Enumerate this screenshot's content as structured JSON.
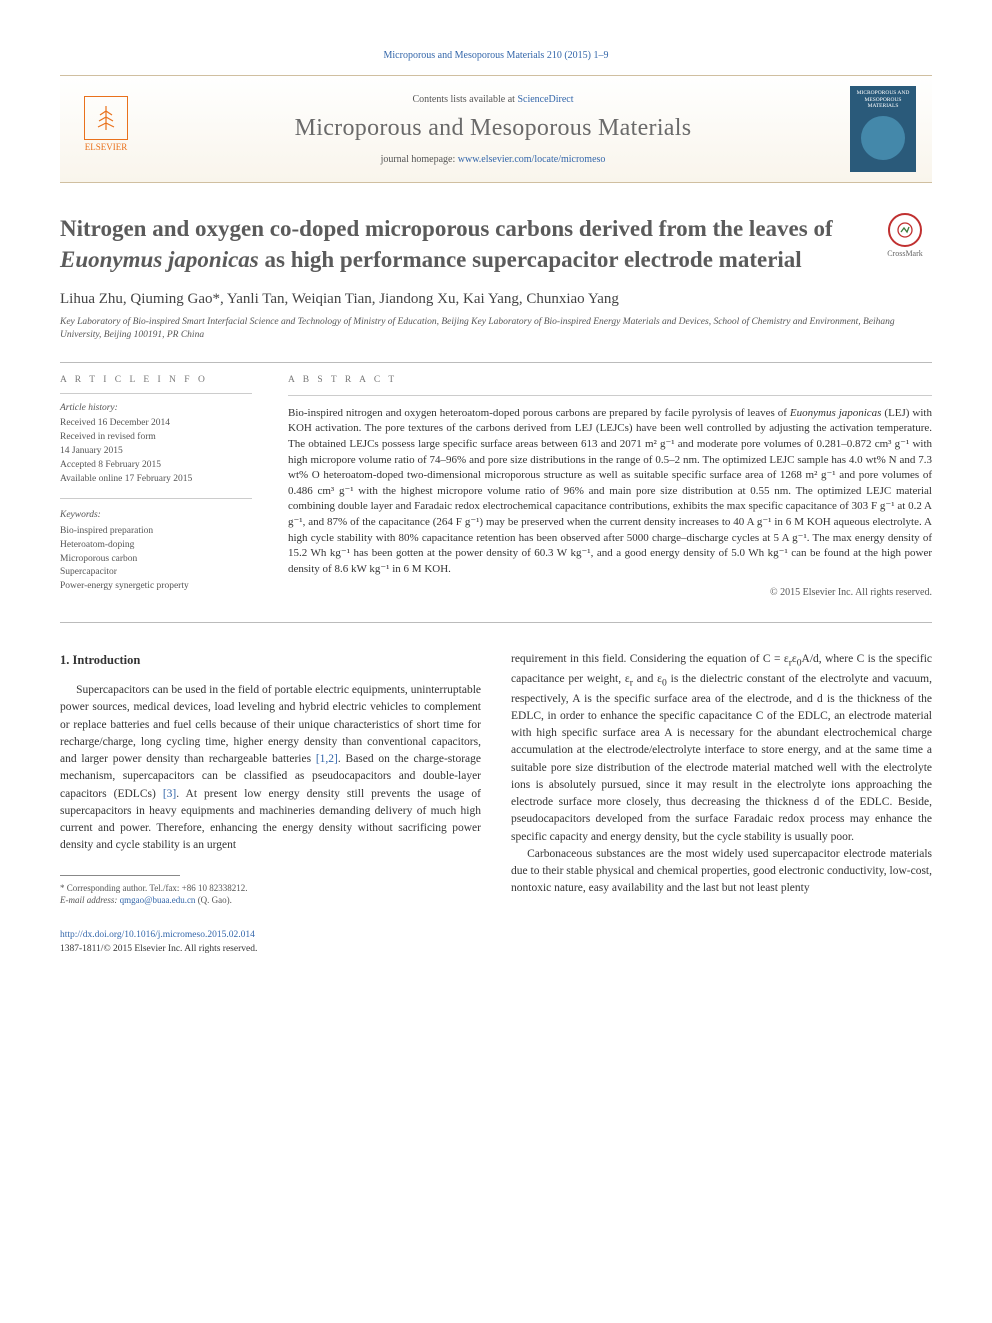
{
  "citation": "Microporous and Mesoporous Materials 210 (2015) 1–9",
  "header": {
    "publisher_name": "ELSEVIER",
    "contents_prefix": "Contents lists available at ",
    "contents_link": "ScienceDirect",
    "journal_name": "Microporous and Mesoporous Materials",
    "homepage_prefix": "journal homepage: ",
    "homepage_url": "www.elsevier.com/locate/micromeso",
    "cover_title": "MICROPOROUS AND MESOPOROUS MATERIALS"
  },
  "crossmark_label": "CrossMark",
  "title_html": "Nitrogen and oxygen co-doped microporous carbons derived from the leaves of <em>Euonymus japonicas</em> as high performance supercapacitor electrode material",
  "authors": "Lihua Zhu, Qiuming Gao*, Yanli Tan, Weiqian Tian, Jiandong Xu, Kai Yang, Chunxiao Yang",
  "affiliation": "Key Laboratory of Bio-inspired Smart Interfacial Science and Technology of Ministry of Education, Beijing Key Laboratory of Bio-inspired Energy Materials and Devices, School of Chemistry and Environment, Beihang University, Beijing 100191, PR China",
  "info": {
    "heading": "A R T I C L E   I N F O",
    "history_label": "Article history:",
    "history": "Received 16 December 2014\nReceived in revised form\n14 January 2015\nAccepted 8 February 2015\nAvailable online 17 February 2015",
    "keywords_label": "Keywords:",
    "keywords": "Bio-inspired preparation\nHeteroatom-doping\nMicroporous carbon\nSupercapacitor\nPower-energy synergetic property"
  },
  "abstract": {
    "heading": "A B S T R A C T",
    "text_html": "Bio-inspired nitrogen and oxygen heteroatom-doped porous carbons are prepared by facile pyrolysis of leaves of <em>Euonymus japonicas</em> (LEJ) with KOH activation. The pore textures of the carbons derived from LEJ (LEJCs) have been well controlled by adjusting the activation temperature. The obtained LEJCs possess large specific surface areas between 613 and 2071 m² g⁻¹ and moderate pore volumes of 0.281–0.872 cm³ g⁻¹ with high micropore volume ratio of 74–96% and pore size distributions in the range of 0.5–2 nm. The optimized LEJC sample has 4.0 wt% N and 7.3 wt% O heteroatom-doped two-dimensional microporous structure as well as suitable specific surface area of 1268 m² g⁻¹ and pore volumes of 0.486 cm³ g⁻¹ with the highest micropore volume ratio of 96% and main pore size distribution at 0.55 nm. The optimized LEJC material combining double layer and Faradaic redox electrochemical capacitance contributions, exhibits the max specific capacitance of 303 F g⁻¹ at 0.2 A g⁻¹, and 87% of the capacitance (264 F g⁻¹) may be preserved when the current density increases to 40 A g⁻¹ in 6 M KOH aqueous electrolyte. A high cycle stability with 80% capacitance retention has been observed after 5000 charge–discharge cycles at 5 A g⁻¹. The max energy density of 15.2 Wh kg⁻¹ has been gotten at the power density of 60.3 W kg⁻¹, and a good energy density of 5.0 Wh kg⁻¹ can be found at the high power density of 8.6 kW kg⁻¹ in 6 M KOH.",
    "copyright": "© 2015 Elsevier Inc. All rights reserved."
  },
  "body": {
    "intro_heading": "1. Introduction",
    "col1_para_html": "Supercapacitors can be used in the field of portable electric equipments, uninterruptable power sources, medical devices, load leveling and hybrid electric vehicles to complement or replace batteries and fuel cells because of their unique characteristics of short time for recharge/charge, long cycling time, higher energy density than conventional capacitors, and larger power density than rechargeable batteries <span class=\"ref-link\">[1,2]</span>. Based on the charge-storage mechanism, supercapacitors can be classified as pseudocapacitors and double-layer capacitors (EDLCs) <span class=\"ref-link\">[3]</span>. At present low energy density still prevents the usage of supercapacitors in heavy equipments and machineries demanding delivery of much high current and power. Therefore, enhancing the energy density without sacrificing power density and cycle stability is an urgent",
    "col2_para1_html": "requirement in this field. Considering the equation of C = ε<sub>r</sub>ε<sub>0</sub>A/d, where C is the specific capacitance per weight, ε<sub>r</sub> and ε<sub>0</sub> is the dielectric constant of the electrolyte and vacuum, respectively, A is the specific surface area of the electrode, and d is the thickness of the EDLC, in order to enhance the specific capacitance C of the EDLC, an electrode material with high specific surface area A is necessary for the abundant electrochemical charge accumulation at the electrode/electrolyte interface to store energy, and at the same time a suitable pore size distribution of the electrode material matched well with the electrolyte ions is absolutely pursued, since it may result in the electrolyte ions approaching the electrode surface more closely, thus decreasing the thickness d of the EDLC. Beside, pseudocapacitors developed from the surface Faradaic redox process may enhance the specific capacity and energy density, but the cycle stability is usually poor.",
    "col2_para2_html": "Carbonaceous substances are the most widely used supercapacitor electrode materials due to their stable physical and chemical properties, good electronic conductivity, low-cost, nontoxic nature, easy availability and the last but not least plenty"
  },
  "footnotes": {
    "corr": "* Corresponding author. Tel./fax: +86 10 82338212.",
    "email_label": "E-mail address: ",
    "email": "qmgao@buaa.edu.cn",
    "email_suffix": " (Q. Gao)."
  },
  "footer": {
    "doi": "http://dx.doi.org/10.1016/j.micromeso.2015.02.014",
    "issn_line": "1387-1811/© 2015 Elsevier Inc. All rights reserved."
  },
  "colors": {
    "link": "#3366aa",
    "elsevier_orange": "#e9711c",
    "title_gray": "#5b5b5b",
    "text": "#333333"
  }
}
